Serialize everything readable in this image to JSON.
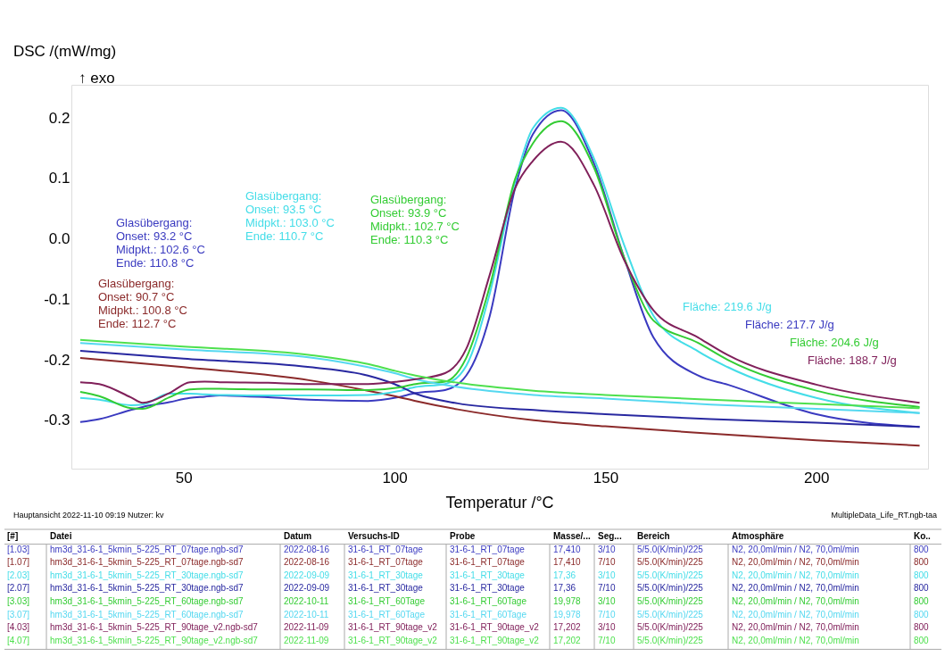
{
  "chart_data": {
    "type": "line",
    "xlabel": "Temperatur /°C",
    "ylabel": "DSC /(mW/mg)",
    "xlim": [
      23.4,
      226.5
    ],
    "ylim": [
      -0.38,
      0.255
    ],
    "xticks": [
      50,
      100,
      150,
      200
    ],
    "yticks": [
      -0.3,
      -0.2,
      -0.1,
      {
        "value": 0,
        "label": "0.0"
      },
      0.1,
      0.2
    ],
    "grid": false,
    "line_style": "solid",
    "series": [
      {
        "name": "[1.03]",
        "color": "#3a3ac0",
        "x": [
          25.5,
          30,
          37.5,
          40.3,
          46.6,
          51.5,
          55,
          58.6,
          70,
          79.7,
          93.7,
          100.8,
          105,
          112,
          117,
          122.6,
          128.6,
          132.8,
          139.5,
          147.3,
          154.4,
          161.4,
          172,
          179,
          200,
          224.5
        ],
        "values": [
          -0.303,
          -0.298,
          -0.283,
          -0.278,
          -0.27,
          -0.263,
          -0.261,
          -0.259,
          -0.262,
          -0.266,
          -0.268,
          -0.262,
          -0.255,
          -0.25,
          -0.226,
          -0.127,
          0.084,
          0.173,
          0.213,
          0.125,
          -0.03,
          -0.163,
          -0.226,
          -0.241,
          -0.29,
          -0.311
        ]
      },
      {
        "name": "[1.07]",
        "color": "#8b2a2a",
        "x": [
          25.5,
          50,
          80,
          93.7,
          100,
          105,
          115,
          133,
          150,
          175,
          200,
          224.5
        ],
        "values": [
          -0.197,
          -0.212,
          -0.234,
          -0.251,
          -0.26,
          -0.268,
          -0.282,
          -0.3,
          -0.31,
          -0.322,
          -0.333,
          -0.342
        ]
      },
      {
        "name": "[2.03]",
        "color": "#44dde8",
        "x": [
          25.5,
          30,
          37.5,
          40.3,
          46.6,
          51.5,
          55,
          58.6,
          70,
          79.7,
          93.7,
          100.8,
          105,
          112,
          117,
          122.6,
          128.6,
          132.8,
          139.5,
          147.3,
          154.4,
          161.4,
          172,
          179,
          200,
          224.5
        ],
        "values": [
          -0.263,
          -0.266,
          -0.275,
          -0.274,
          -0.256,
          -0.256,
          -0.257,
          -0.258,
          -0.259,
          -0.259,
          -0.258,
          -0.252,
          -0.245,
          -0.24,
          -0.21,
          -0.09,
          0.095,
          0.183,
          0.217,
          0.133,
          -0.009,
          -0.127,
          -0.186,
          -0.212,
          -0.263,
          -0.288
        ]
      },
      {
        "name": "[2.07]",
        "color": "#2828a0",
        "x": [
          25.5,
          50,
          80,
          93.7,
          100,
          105,
          115,
          133,
          150,
          175,
          200,
          224.5
        ],
        "values": [
          -0.185,
          -0.198,
          -0.212,
          -0.226,
          -0.24,
          -0.256,
          -0.272,
          -0.283,
          -0.29,
          -0.298,
          -0.304,
          -0.311
        ]
      },
      {
        "name": "[3.03]",
        "color": "#33cc33",
        "x": [
          25.5,
          30,
          37.5,
          40.3,
          46.6,
          51.5,
          55,
          58.6,
          70,
          79.7,
          93.7,
          100.8,
          105,
          112,
          117,
          122.6,
          128.6,
          132.8,
          139.5,
          147.3,
          154.4,
          161.4,
          172,
          179,
          200,
          224.5
        ],
        "values": [
          -0.253,
          -0.26,
          -0.28,
          -0.281,
          -0.262,
          -0.249,
          -0.248,
          -0.248,
          -0.249,
          -0.249,
          -0.25,
          -0.246,
          -0.24,
          -0.236,
          -0.197,
          -0.078,
          0.099,
          0.158,
          0.195,
          0.118,
          -0.03,
          -0.135,
          -0.172,
          -0.2,
          -0.251,
          -0.278
        ]
      },
      {
        "name": "[3.07]",
        "color": "#55d8f0",
        "x": [
          25.5,
          50,
          80,
          93.7,
          100,
          105,
          115,
          133,
          150,
          175,
          200,
          224.5
        ],
        "values": [
          -0.172,
          -0.183,
          -0.196,
          -0.212,
          -0.222,
          -0.232,
          -0.245,
          -0.258,
          -0.264,
          -0.274,
          -0.281,
          -0.288
        ]
      },
      {
        "name": "[4.03]",
        "color": "#80205a",
        "x": [
          25.5,
          30,
          37.5,
          40.3,
          46.6,
          51.5,
          55,
          58.6,
          70,
          79.7,
          93.7,
          100.8,
          105,
          112,
          117,
          122.6,
          128.6,
          132.8,
          139.5,
          147.3,
          154.4,
          161.4,
          172,
          179,
          200,
          224.5
        ],
        "values": [
          -0.237,
          -0.24,
          -0.262,
          -0.271,
          -0.255,
          -0.237,
          -0.236,
          -0.237,
          -0.238,
          -0.24,
          -0.24,
          -0.236,
          -0.232,
          -0.222,
          -0.182,
          -0.059,
          0.084,
          0.129,
          0.161,
          0.089,
          -0.034,
          -0.118,
          -0.163,
          -0.192,
          -0.241,
          -0.271
        ]
      },
      {
        "name": "[4.07]",
        "color": "#4ee04e",
        "x": [
          25.5,
          50,
          80,
          93.7,
          100,
          105,
          115,
          133,
          150,
          175,
          200,
          224.5
        ],
        "values": [
          -0.167,
          -0.178,
          -0.192,
          -0.207,
          -0.218,
          -0.226,
          -0.238,
          -0.251,
          -0.258,
          -0.266,
          -0.273,
          -0.28
        ]
      }
    ],
    "annotations": [
      "↑ exo",
      "Glasübergang:\nOnset:     93.2 °C\nMidpkt.:  102.6 °C\nEnde:     110.8 °C",
      "Glasübergang:\nOnset:     93.5 °C\nMidpkt.:  103.0 °C\nEnde:     110.7 °C",
      "Glasübergang:\nOnset:     93.9 °C\nMidpkt.:  102.7 °C\nEnde:     110.3 °C",
      "Glasübergang:\nOnset:     90.7 °C\nMidpkt.:  100.8 °C\nEnde:     112.7 °C",
      "Fläche: 219.6 J/g",
      "Fläche: 217.7 J/g",
      "Fläche: 204.6 J/g",
      "Fläche: 188.7 J/g",
      "Hauptansicht   2022-11-10 09:19   Nutzer: kv",
      "MultipleData_Life_RT.ngb-taa",
      "[#]\tDatei\tDatum\tVersuchs-ID\tProbe\tMasse/...\tSeg...\tBereich\tAtmosphäre\tKo..",
      "hm3d_31-6-1_5kmin_5-225_RT_07tage.ngb-sd7\t2022-08-16\t31-6-1_RT_07tage\t31-6-1_RT_07tage\t17,410\t3/10\t5/5.0(K/min)/225\tN2, 20,0ml/min / N2, 70,0ml/min\t800",
      "hm3d_31-6-1_5kmin_5-225_RT_07tage.ngb-sd7\t2022-08-16\t31-6-1_RT_07tage\t31-6-1_RT_07tage\t17,410\t7/10\t5/5.0(K/min)/225\tN2, 20,0ml/min / N2, 70,0ml/min\t800",
      "hm3d_31-6-1_5kmin_5-225_RT_30tage.ngb-sd7\t2022-09-09\t31-6-1_RT_30tage\t31-6-1_RT_30tage\t17,36\t3/10\t5/5.0(K/min)/225\tN2, 20,0ml/min / N2, 70,0ml/min\t800",
      "hm3d_31-6-1_5kmin_5-225_RT_30tage.ngb-sd7\t2022-09-09\t31-6-1_RT_30tage\t31-6-1_RT_30tage\t17,36\t7/10\t5/5.0(K/min)/225\tN2, 20,0ml/min / N2, 70,0ml/min\t800",
      "hm3d_31-6-1_5kmin_5-225_RT_60tage.ngb-sd7\t2022-10-11\t31-6-1_RT_60Tage\t31-6-1_RT_60Tage\t19,978\t3/10\t5/5.0(K/min)/225\tN2, 20,0ml/min / N2, 70,0ml/min\t800",
      "hm3d_31-6-1_5kmin_5-225_RT_60tage.ngb-sd7\t2022-10-11\t31-6-1_RT_60Tage\t31-6-1_RT_60Tage\t19,978\t7/10\t5/5.0(K/min)/225\tN2, 20,0ml/min / N2, 70,0ml/min\t800",
      "hm3d_31-6-1_5kmin_5-225_RT_90tage_v2.ngb-sd7\t2022-11-09\t31-6-1_RT_90tage_v2\t31-6-1_RT_90tage_v2\t17,202\t3/10\t5/5.0(K/min)/225\tN2, 20,0ml/min / N2, 70,0ml/min\t800",
      "hm3d_31-6-1_5kmin_5-225_RT_90tage_v2.ngb-sd7\t2022-11-09\t31-6-1_RT_90tage_v2\t31-6-1_RT_90tage_v2\t17,202\t7/10\t5/5.0(K/min)/225\tN2, 20,0ml/min / N2, 70,0ml/min\t800"
    ]
  }
}
